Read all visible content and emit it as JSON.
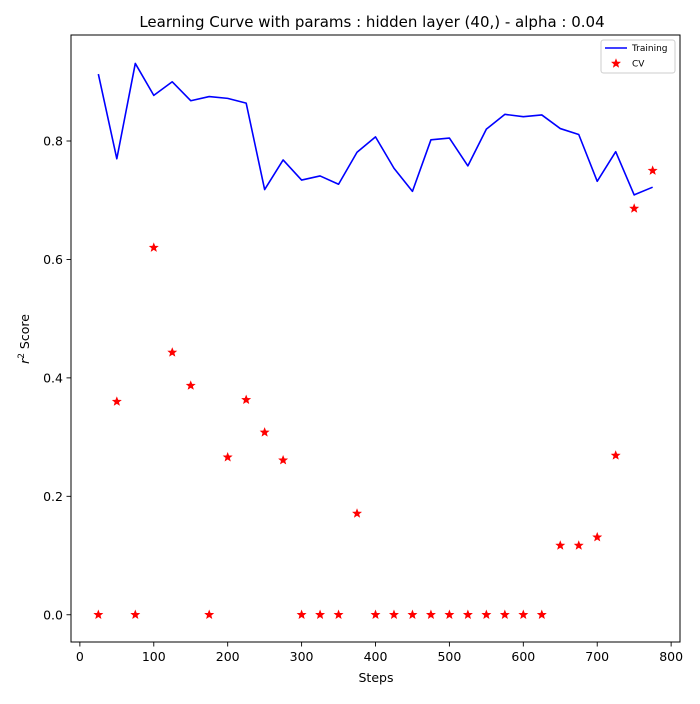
{
  "chart_data": {
    "type": "line",
    "title": "Learning Curve with params : hidden layer (40,) - alpha : 0.04",
    "xlabel": "Steps",
    "ylabel_prefix": "r",
    "ylabel_sup": "2",
    "ylabel_suffix": " Score",
    "xlim": [
      -12,
      812
    ],
    "ylim": [
      -0.046,
      0.979
    ],
    "xticks": [
      0,
      100,
      200,
      300,
      400,
      500,
      600,
      700,
      800
    ],
    "xtick_labels": [
      "0",
      "100",
      "200",
      "300",
      "400",
      "500",
      "600",
      "700",
      "800"
    ],
    "yticks": [
      0.0,
      0.2,
      0.4,
      0.6,
      0.8
    ],
    "ytick_labels": [
      "0.0",
      "0.2",
      "0.4",
      "0.6",
      "0.8"
    ],
    "legend_position": "top-right",
    "grid": false,
    "series": [
      {
        "name": "Training",
        "style": "line",
        "color": "#0000ff",
        "x": [
          25,
          50,
          75,
          100,
          125,
          150,
          175,
          200,
          225,
          250,
          275,
          300,
          325,
          350,
          375,
          400,
          425,
          450,
          475,
          500,
          525,
          550,
          575,
          600,
          625,
          650,
          675,
          700,
          725,
          750,
          775
        ],
        "y": [
          0.913,
          0.77,
          0.931,
          0.877,
          0.9,
          0.868,
          0.875,
          0.872,
          0.864,
          0.718,
          0.768,
          0.734,
          0.741,
          0.727,
          0.781,
          0.807,
          0.754,
          0.715,
          0.802,
          0.805,
          0.758,
          0.82,
          0.845,
          0.841,
          0.844,
          0.821,
          0.811,
          0.732,
          0.782,
          0.709,
          0.722
        ]
      },
      {
        "name": "CV",
        "style": "marker-star",
        "color": "#ff0000",
        "x": [
          25,
          50,
          75,
          100,
          125,
          150,
          175,
          200,
          225,
          250,
          275,
          300,
          325,
          350,
          375,
          400,
          425,
          450,
          475,
          500,
          525,
          550,
          575,
          600,
          625,
          650,
          675,
          700,
          725,
          750,
          775
        ],
        "y": [
          0.0,
          0.36,
          0.0,
          0.62,
          0.443,
          0.387,
          0.0,
          0.266,
          0.363,
          0.308,
          0.261,
          0.0,
          0.0,
          0.0,
          0.171,
          0.0,
          0.0,
          0.0,
          0.0,
          0.0,
          0.0,
          0.0,
          0.0,
          0.0,
          0.0,
          0.117,
          0.117,
          0.131,
          0.269,
          0.686,
          0.75
        ]
      }
    ]
  }
}
